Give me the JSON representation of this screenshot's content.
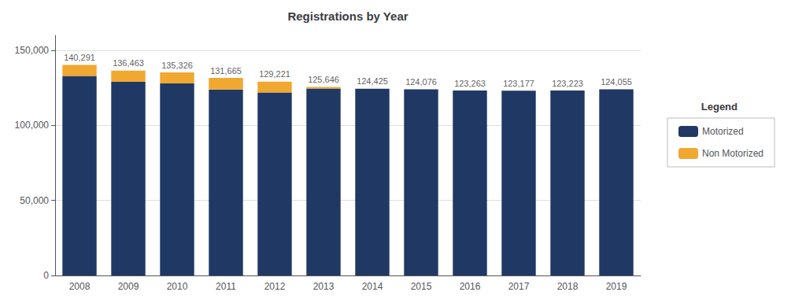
{
  "chart_data": {
    "type": "bar",
    "title": "Registrations by Year",
    "stacked": true,
    "categories": [
      "2008",
      "2009",
      "2010",
      "2011",
      "2012",
      "2013",
      "2014",
      "2015",
      "2016",
      "2017",
      "2018",
      "2019"
    ],
    "series": [
      {
        "name": "Motorized",
        "color": "#1f3864",
        "values": [
          133000,
          129000,
          128000,
          124000,
          122000,
          124646,
          124425,
          124076,
          123263,
          123177,
          123223,
          124055
        ]
      },
      {
        "name": "Non Motorized",
        "color": "#f0a830",
        "values": [
          7291,
          7463,
          7326,
          7665,
          7221,
          1000,
          0,
          0,
          0,
          0,
          0,
          0
        ]
      }
    ],
    "totals": [
      140291,
      136463,
      135326,
      131665,
      129221,
      125646,
      124425,
      124076,
      123263,
      123177,
      123223,
      124055
    ],
    "total_labels": [
      "140,291",
      "136,463",
      "135,326",
      "131,665",
      "129,221",
      "125,646",
      "124,425",
      "124,076",
      "123,263",
      "123,177",
      "123,223",
      "124,055"
    ],
    "ylim": [
      0,
      160000
    ],
    "yticks": [
      0,
      {
        "value": 50000,
        "label": "50,000"
      },
      {
        "value": 100000,
        "label": "100,000"
      },
      {
        "value": 150000,
        "label": "150,000"
      }
    ],
    "grid": true,
    "legend": "right",
    "legend_title": "Legend"
  }
}
